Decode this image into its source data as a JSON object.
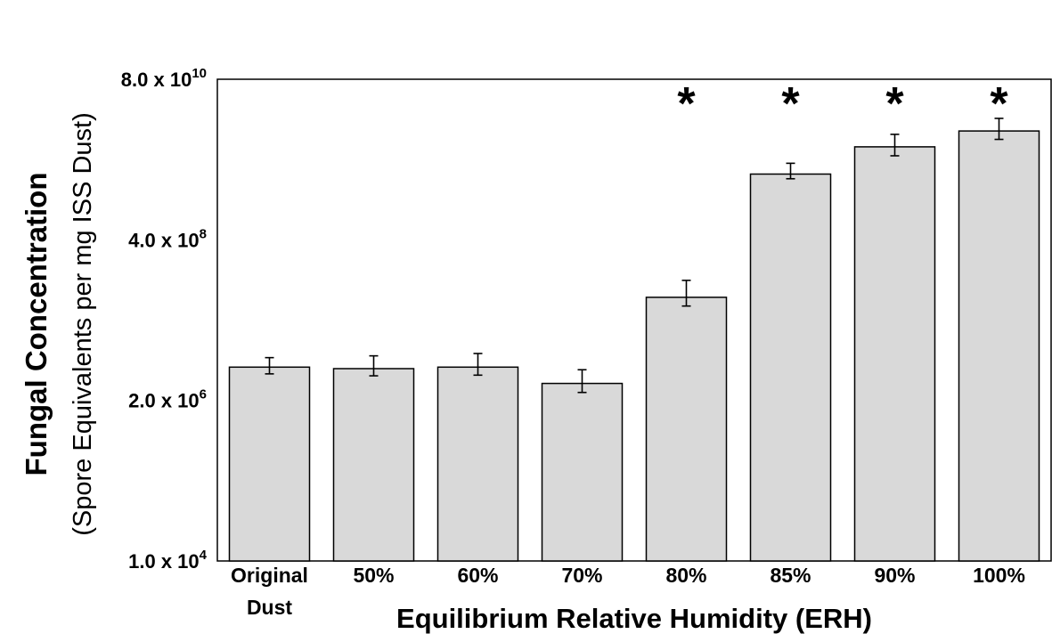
{
  "chart_data": {
    "type": "bar",
    "scale": "log",
    "ylabel_line1": "Fungal Concentration",
    "ylabel_line2": "(Spore Equivalents per mg ISS Dust)",
    "xlabel": "Equilibrium Relative Humidity (ERH)",
    "ylim": [
      10000,
      80000000000
    ],
    "yticks": [
      {
        "mantissa": "1.0 x 10",
        "exponent": "4",
        "value": 10000
      },
      {
        "mantissa": "2.0 x 10",
        "exponent": "6",
        "value": 2000000
      },
      {
        "mantissa": "4.0 x 10",
        "exponent": "8",
        "value": 400000000
      },
      {
        "mantissa": "8.0 x 10",
        "exponent": "10",
        "value": 80000000000
      }
    ],
    "categories": [
      {
        "line1": "Original",
        "line2": "Dust"
      },
      {
        "line1": "50%",
        "line2": ""
      },
      {
        "line1": "60%",
        "line2": ""
      },
      {
        "line1": "70%",
        "line2": ""
      },
      {
        "line1": "80%",
        "line2": ""
      },
      {
        "line1": "85%",
        "line2": ""
      },
      {
        "line1": "90%",
        "line2": ""
      },
      {
        "line1": "100%",
        "line2": ""
      }
    ],
    "values": [
      6000000,
      5700000,
      6000000,
      3500000,
      60000000,
      3500000000,
      8600000000,
      14500000000
    ],
    "error_low": [
      4800000,
      4500000,
      4600000,
      2600000,
      45000000,
      3000000000,
      6400000000,
      11000000000
    ],
    "error_high": [
      8200000,
      8700000,
      9400000,
      5500000,
      105000000,
      5000000000,
      13000000000,
      22000000000
    ],
    "significance": [
      "",
      "",
      "",
      "",
      "*",
      "*",
      "*",
      "*"
    ],
    "colors": {
      "bar_fill": "#d9d9d9",
      "bar_stroke": "#000000",
      "axis": "#000000",
      "text": "#000000"
    },
    "grid": false,
    "legend": "none"
  }
}
